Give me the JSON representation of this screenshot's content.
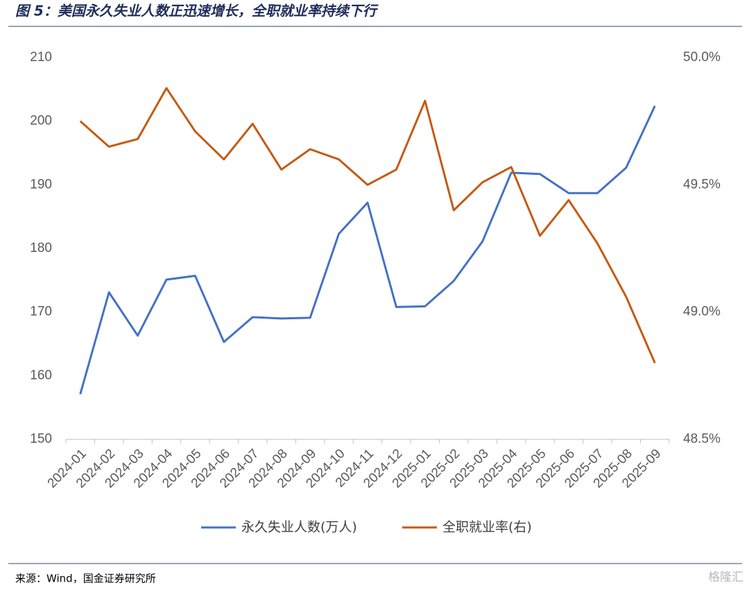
{
  "chart_data": {
    "type": "line",
    "title": "图 5：美国永久失业人数正迅速增长，全职就业率持续下行",
    "source": "来源：Wind，国金证券研究所",
    "watermark": "格隆汇",
    "categories": [
      "2024-01",
      "2024-02",
      "2024-03",
      "2024-04",
      "2024-05",
      "2024-06",
      "2024-07",
      "2024-08",
      "2024-09",
      "2024-10",
      "2024-11",
      "2024-12",
      "2025-01",
      "2025-02",
      "2025-03",
      "2025-04",
      "2025-05",
      "2025-06",
      "2025-07",
      "2025-08",
      "2025-09"
    ],
    "series": [
      {
        "name": "永久失业人数(万人)",
        "color": "#4472c4",
        "values": [
          157.1,
          173.1,
          166.3,
          175.1,
          175.7,
          165.3,
          169.2,
          169.0,
          169.1,
          182.3,
          187.2,
          170.8,
          170.9,
          174.9,
          181.1,
          191.9,
          191.7,
          188.7,
          188.7,
          192.7,
          202.4
        ]
      },
      {
        "name": "全职就业率(右)",
        "color": "#c55a11",
        "axis": "y2",
        "values": [
          49.75,
          49.65,
          49.68,
          49.88,
          49.71,
          49.6,
          49.74,
          49.56,
          49.64,
          49.6,
          49.5,
          49.56,
          49.83,
          49.4,
          49.51,
          49.57,
          49.3,
          49.44,
          49.27,
          49.06,
          48.8
        ]
      }
    ],
    "ylim": [
      150,
      210
    ],
    "yticks": [
      150,
      160,
      170,
      180,
      190,
      200,
      210
    ],
    "y2lim": [
      48.5,
      50.0
    ],
    "y2ticks": [
      {
        "value": 48.5,
        "label": "48.5%"
      },
      {
        "value": 49.0,
        "label": "49.0%"
      },
      {
        "value": 49.5,
        "label": "49.5%"
      },
      {
        "value": 50.0,
        "label": "50.0%"
      }
    ],
    "grid": false
  }
}
